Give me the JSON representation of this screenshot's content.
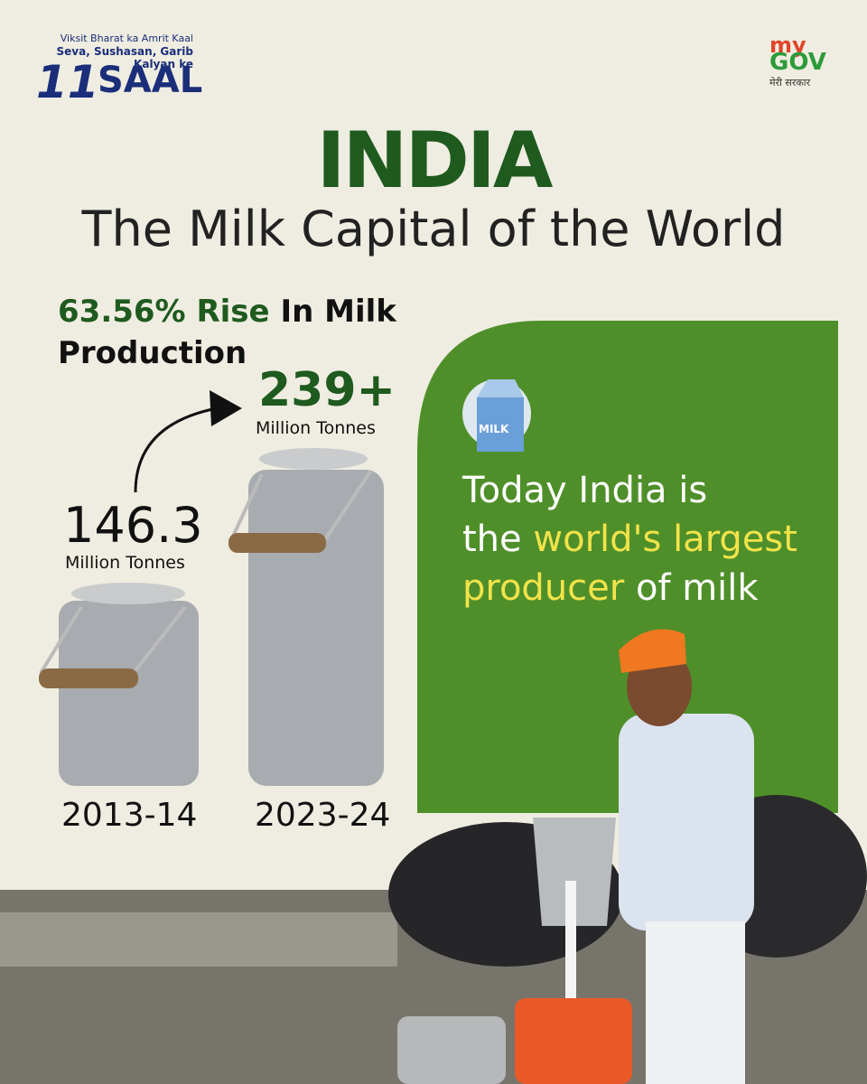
{
  "header": {
    "tagline_1": "Viksit Bharat ka Amrit Kaal",
    "tagline_2": "Seva, Sushasan, Garib Kalyan ke",
    "logo_number": "11",
    "logo_word": "SAAL",
    "brand_my": "my",
    "brand_gov": "GOV",
    "brand_hindi": "मेरी सरकार"
  },
  "title": "INDIA",
  "subtitle": "The Milk Capital of the World",
  "rise": {
    "highlight": "63.56% Rise",
    "text_1": "In Milk",
    "text_2": "Production"
  },
  "comparison": [
    {
      "value": "146.3",
      "unit": "Million Tonnes",
      "year": "2013-14"
    },
    {
      "value": "239+",
      "unit": "Million Tonnes",
      "year": "2023-24"
    }
  ],
  "panel": {
    "icon_label": "MILK",
    "line_1": "Today India is",
    "line_2_plain": "the",
    "highlight_1": "world's largest",
    "highlight_2": "producer",
    "line_end": "of milk"
  }
}
